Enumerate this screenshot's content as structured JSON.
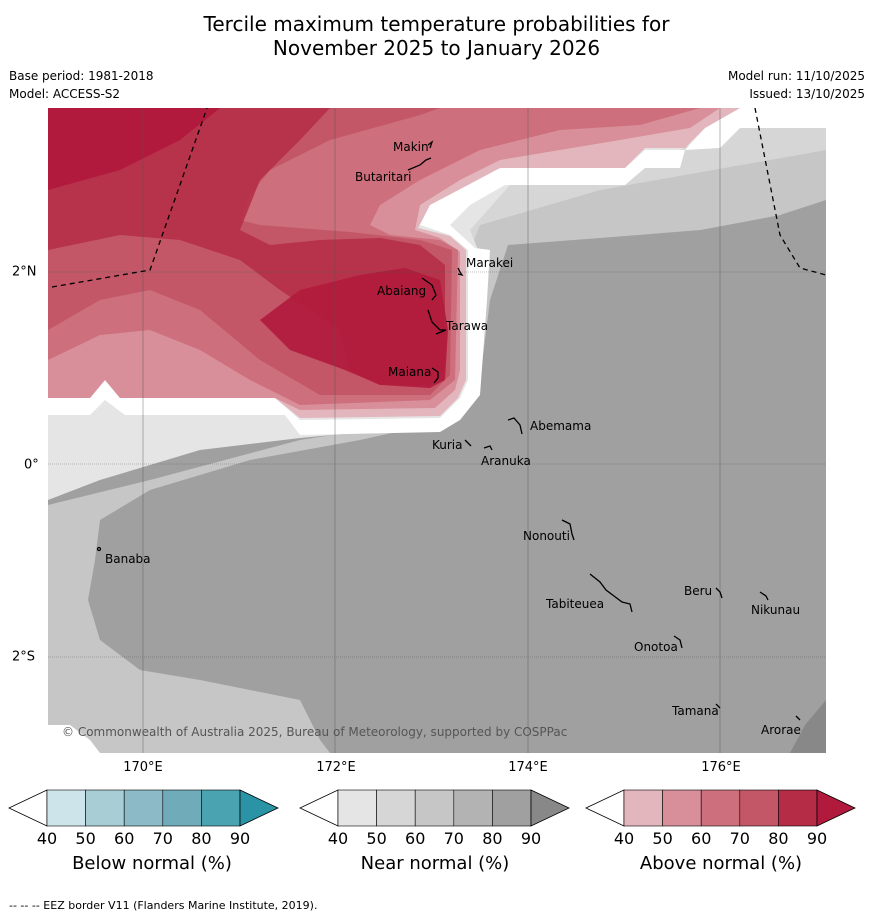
{
  "title_line1": "Tercile maximum temperature probabilities for",
  "title_line2": "November 2025 to January 2026",
  "base_period": "Base period: 1981-2018",
  "model": "Model: ACCESS-S2",
  "model_run": "Model run: 11/10/2025",
  "issued": "Issued: 13/10/2025",
  "longitude_labels": [
    "170°E",
    "172°E",
    "174°E",
    "176°E"
  ],
  "latitude_labels": [
    "2°N",
    "0°",
    "2°S"
  ],
  "places": [
    "Makin",
    "Butaritari",
    "Marakei",
    "Abaiang",
    "Tarawa",
    "Maiana",
    "Abemama",
    "Kuria",
    "Aranuka",
    "Nonouti",
    "Banaba",
    "Tabiteuea",
    "Beru",
    "Nikunau",
    "Onotoa",
    "Tamana",
    "Arorae"
  ],
  "copyright": "© Commonwealth of Australia 2025, Bureau of Meteorology, supported by COSPPac",
  "colorbars": [
    {
      "title": "Below normal (%)",
      "ticks": [
        "40",
        "50",
        "60",
        "70",
        "80",
        "90"
      ],
      "colors": [
        "#ffffff",
        "#cde4ea",
        "#a9cdd5",
        "#8cbac6",
        "#6fabb9",
        "#4aa3b1",
        "#2b93a6"
      ]
    },
    {
      "title": "Near normal (%)",
      "ticks": [
        "40",
        "50",
        "60",
        "70",
        "80",
        "90"
      ],
      "colors": [
        "#ffffff",
        "#e5e5e5",
        "#d6d6d6",
        "#c6c6c6",
        "#b3b3b3",
        "#a0a0a0",
        "#888888"
      ]
    },
    {
      "title": "Above normal (%)",
      "ticks": [
        "40",
        "50",
        "60",
        "70",
        "80",
        "90"
      ],
      "colors": [
        "#ffffff",
        "#e3b6bd",
        "#d88f99",
        "#cd6f7c",
        "#c35768",
        "#b52c46",
        "#b11a3c"
      ]
    }
  ],
  "footer": "--  --  -- EEZ border V11 (Flanders Marine Institute, 2019)."
}
